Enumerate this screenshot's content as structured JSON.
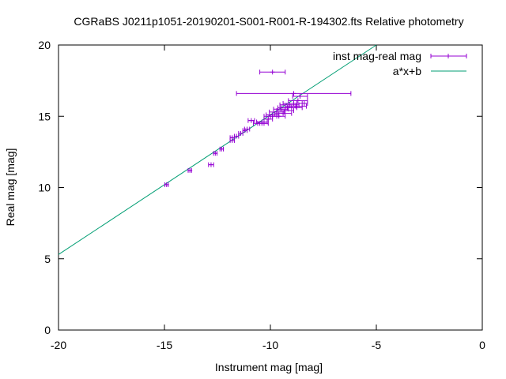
{
  "chart_data": {
    "type": "scatter",
    "title": "CGRaBS J0211p1051-20190201-S001-R001-R-194302.fts Relative photometry",
    "xlabel": "Instrument mag [mag]",
    "ylabel": "Real mag [mag]",
    "xlim": [
      -20,
      0
    ],
    "ylim": [
      0,
      20
    ],
    "xticks": [
      -20,
      -15,
      -10,
      -5,
      0
    ],
    "yticks": [
      0,
      5,
      10,
      15,
      20
    ],
    "xtick_labels": [
      "-20",
      "-15",
      "-10",
      "-5",
      "0"
    ],
    "ytick_labels": [
      "0",
      "5",
      "10",
      "15",
      "20"
    ],
    "grid": false,
    "legend_position": "top-right",
    "colors": {
      "points": "#9400d3",
      "fit": "#009e73",
      "axes": "#000000"
    },
    "series": [
      {
        "name": "inst mag-real mag",
        "type": "scatter-xerrorbars",
        "points": [
          {
            "x": -14.9,
            "y": 10.2,
            "xerr": 0.08
          },
          {
            "x": -13.8,
            "y": 11.2,
            "xerr": 0.08
          },
          {
            "x": -12.8,
            "y": 11.6,
            "xerr": 0.12
          },
          {
            "x": -12.6,
            "y": 12.4,
            "xerr": 0.08
          },
          {
            "x": -12.3,
            "y": 12.7,
            "xerr": 0.08
          },
          {
            "x": -11.8,
            "y": 13.3,
            "xerr": 0.1
          },
          {
            "x": -11.8,
            "y": 13.5,
            "xerr": 0.1
          },
          {
            "x": -11.6,
            "y": 13.6,
            "xerr": 0.1
          },
          {
            "x": -11.4,
            "y": 13.8,
            "xerr": 0.1
          },
          {
            "x": -11.2,
            "y": 14.0,
            "xerr": 0.1
          },
          {
            "x": -11.1,
            "y": 14.1,
            "xerr": 0.12
          },
          {
            "x": -10.9,
            "y": 14.7,
            "xerr": 0.15
          },
          {
            "x": -10.6,
            "y": 14.5,
            "xerr": 0.2
          },
          {
            "x": -10.4,
            "y": 14.6,
            "xerr": 0.25
          },
          {
            "x": -10.3,
            "y": 14.5,
            "xerr": 0.2
          },
          {
            "x": -10.1,
            "y": 14.8,
            "xerr": 0.2
          },
          {
            "x": -10.0,
            "y": 15.0,
            "xerr": 0.3
          },
          {
            "x": -9.9,
            "y": 15.1,
            "xerr": 0.3
          },
          {
            "x": -9.7,
            "y": 15.3,
            "xerr": 0.35
          },
          {
            "x": -9.6,
            "y": 15.0,
            "xerr": 0.3
          },
          {
            "x": -9.5,
            "y": 15.5,
            "xerr": 0.35
          },
          {
            "x": -9.4,
            "y": 15.2,
            "xerr": 0.4
          },
          {
            "x": -9.3,
            "y": 15.4,
            "xerr": 0.4
          },
          {
            "x": -9.2,
            "y": 15.6,
            "xerr": 0.45
          },
          {
            "x": -9.1,
            "y": 15.8,
            "xerr": 0.45
          },
          {
            "x": -9.0,
            "y": 15.6,
            "xerr": 0.5
          },
          {
            "x": -8.9,
            "y": 15.9,
            "xerr": 0.5
          },
          {
            "x": -8.8,
            "y": 15.7,
            "xerr": 0.5
          },
          {
            "x": -8.7,
            "y": 16.1,
            "xerr": 0.45
          },
          {
            "x": -8.6,
            "y": 16.4,
            "xerr": 0.35
          },
          {
            "x": -8.5,
            "y": 15.9,
            "xerr": 0.25
          },
          {
            "x": -9.9,
            "y": 18.1,
            "xerr": 0.6
          },
          {
            "x": -8.9,
            "y": 16.6,
            "xerr": 2.7
          }
        ]
      },
      {
        "name": "a*x+b",
        "type": "line",
        "points": [
          {
            "x": -20,
            "y": 5.3
          },
          {
            "x": -5,
            "y": 20.0
          }
        ]
      }
    ]
  }
}
